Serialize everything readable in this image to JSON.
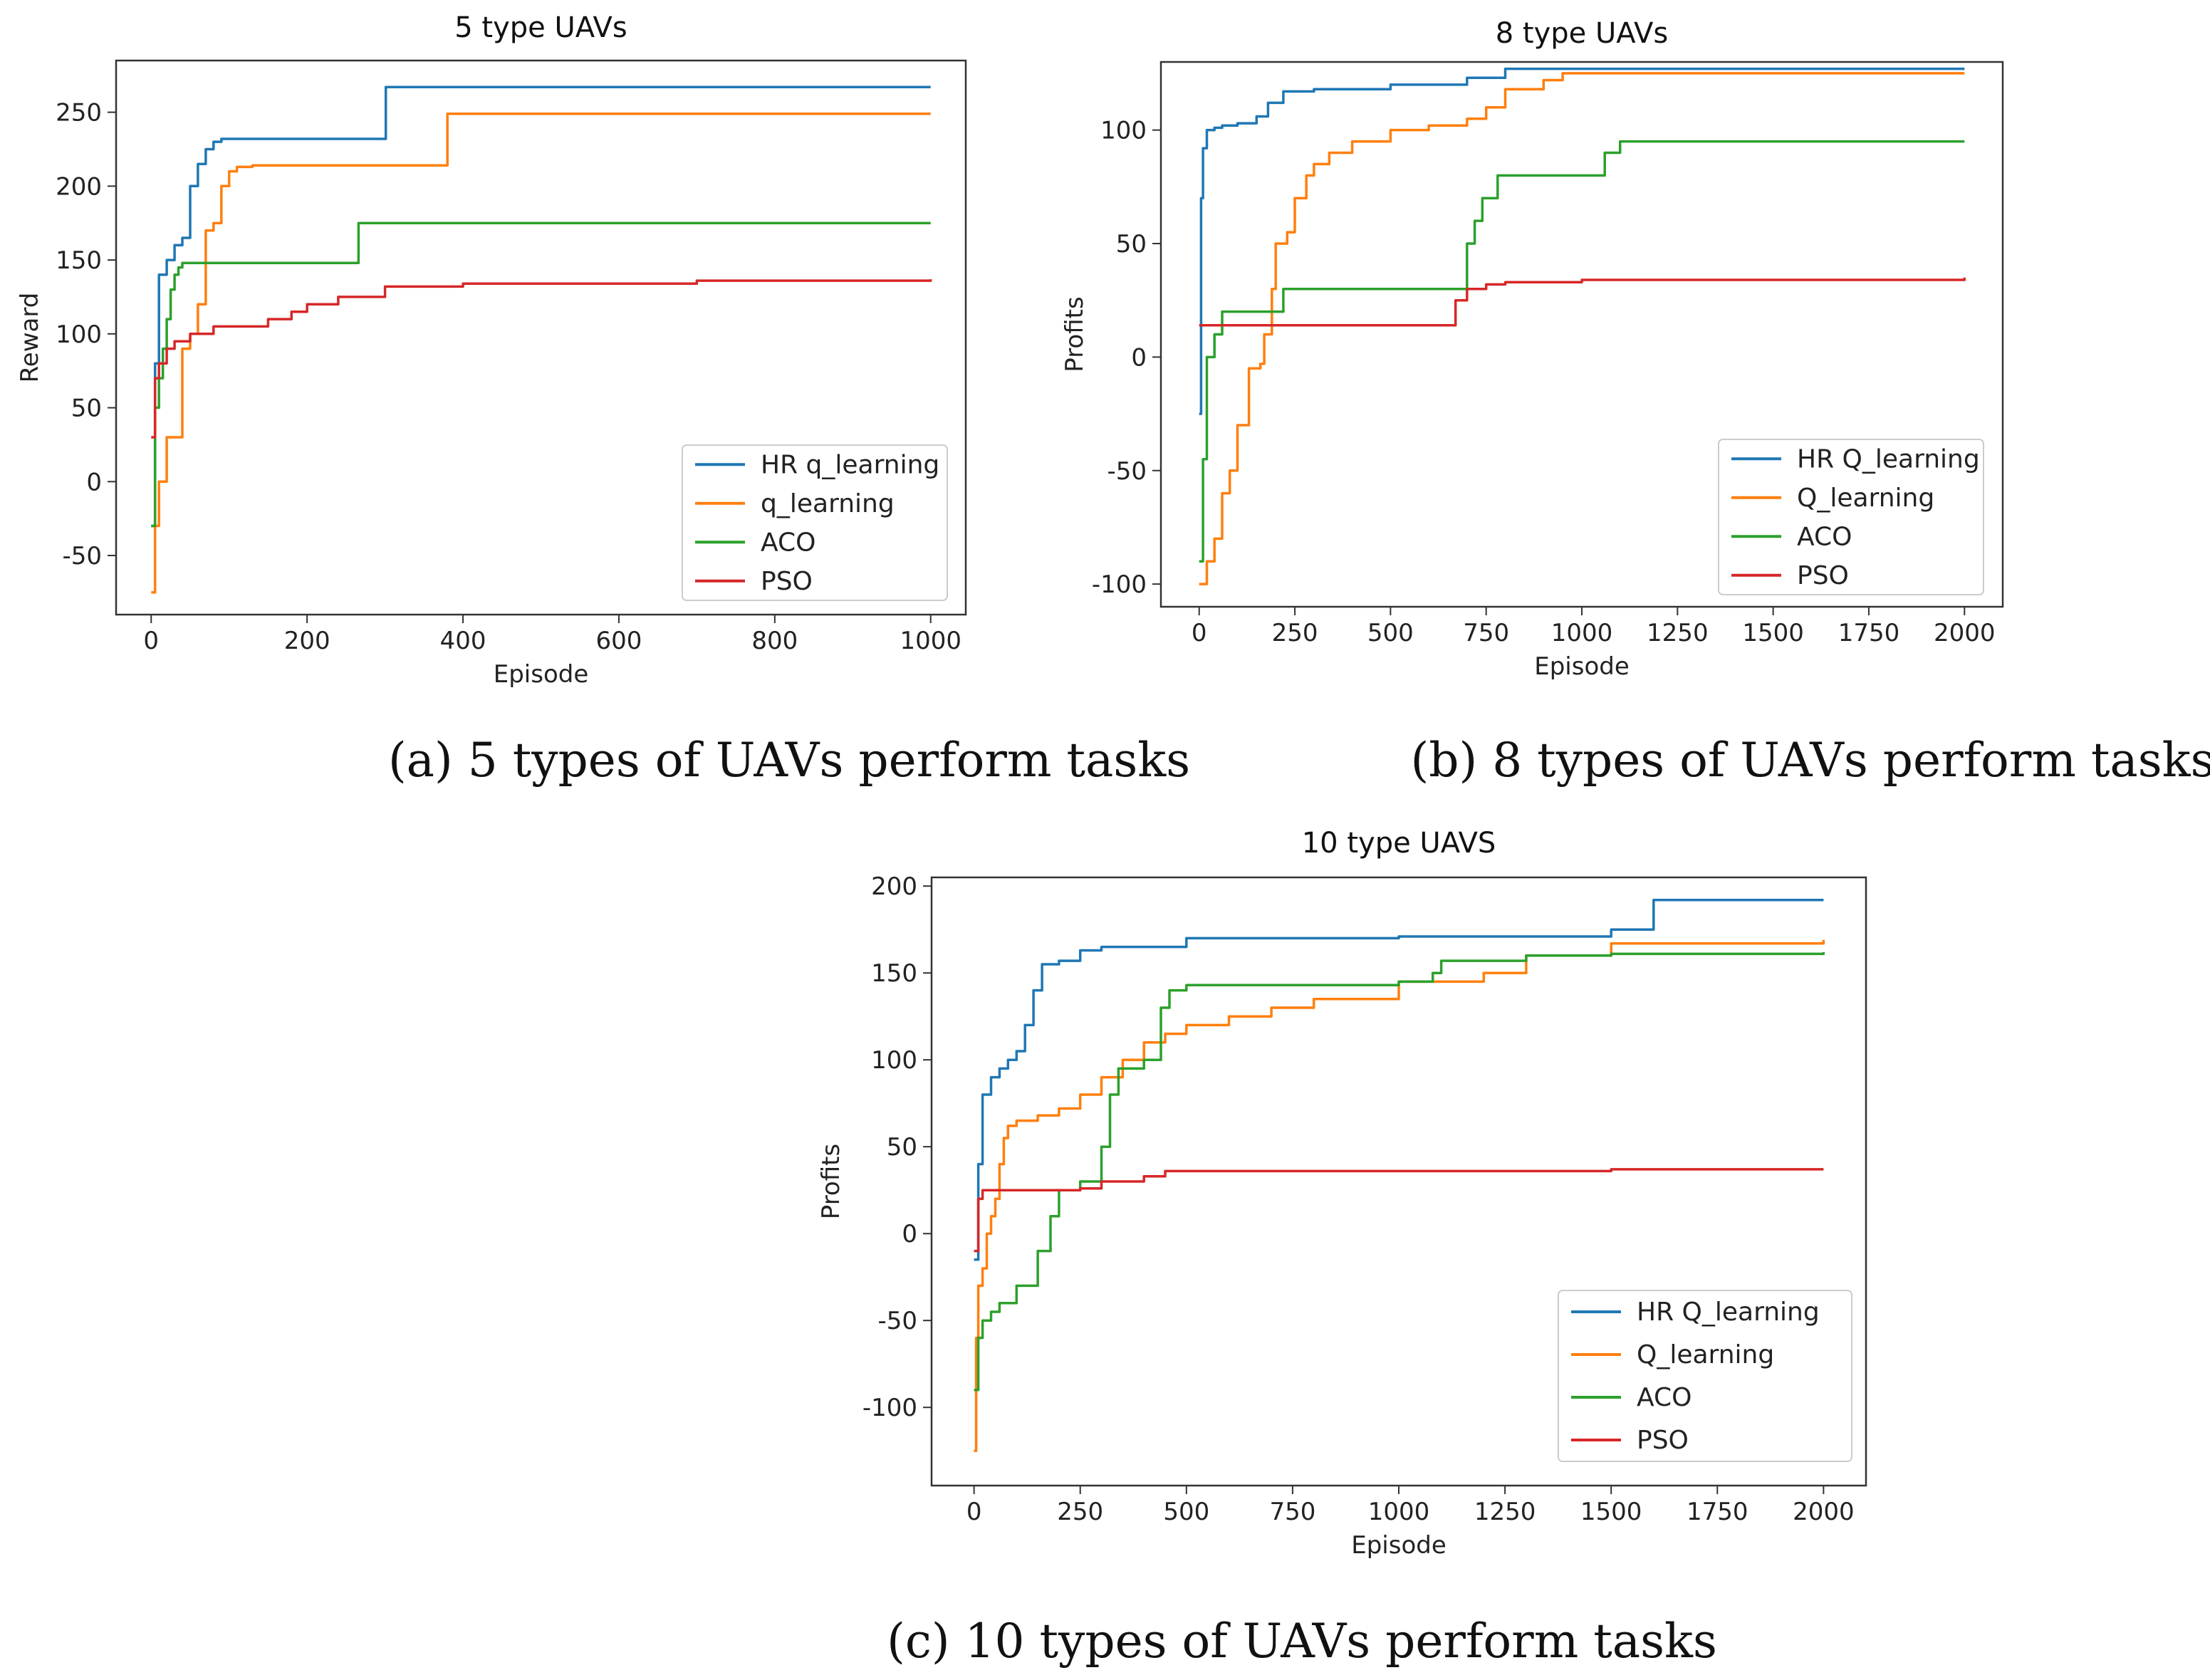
{
  "chart_data": [
    {
      "type": "line",
      "title": "5 type UAVs",
      "xlabel": "Episode",
      "ylabel": "Reward",
      "caption": "(a) 5 types of UAVs perform tasks",
      "xlim": [
        -45,
        1045
      ],
      "ylim": [
        -90,
        285
      ],
      "xticks": [
        0,
        200,
        400,
        600,
        800,
        1000
      ],
      "yticks": [
        -50,
        0,
        50,
        100,
        150,
        200,
        250
      ],
      "legend_position": "lower-right",
      "series": [
        {
          "name": "HR q_learning",
          "color": "#1f77b4",
          "x": [
            0,
            5,
            10,
            20,
            30,
            40,
            50,
            60,
            70,
            80,
            90,
            300,
            301,
            1000
          ],
          "y": [
            -30,
            80,
            140,
            150,
            160,
            165,
            200,
            215,
            225,
            230,
            232,
            232,
            267,
            267
          ]
        },
        {
          "name": "q_learning",
          "color": "#ff7f0e",
          "x": [
            0,
            5,
            10,
            20,
            40,
            50,
            60,
            70,
            80,
            90,
            100,
            110,
            130,
            200,
            378,
            380,
            1000
          ],
          "y": [
            -75,
            -30,
            0,
            30,
            90,
            100,
            120,
            170,
            175,
            200,
            210,
            213,
            214,
            214,
            214,
            249,
            249
          ]
        },
        {
          "name": "ACO",
          "color": "#2ca02c",
          "x": [
            0,
            5,
            10,
            15,
            20,
            25,
            30,
            35,
            40,
            265,
            266,
            1000
          ],
          "y": [
            -30,
            50,
            70,
            90,
            110,
            130,
            140,
            145,
            148,
            148,
            175,
            175
          ]
        },
        {
          "name": "PSO",
          "color": "#d62728",
          "x": [
            0,
            5,
            10,
            20,
            30,
            50,
            80,
            140,
            150,
            180,
            200,
            240,
            300,
            400,
            700,
            1000
          ],
          "y": [
            30,
            70,
            80,
            90,
            95,
            100,
            105,
            105,
            110,
            115,
            120,
            125,
            132,
            134,
            136,
            137
          ]
        }
      ]
    },
    {
      "type": "line",
      "title": "8 type UAVs",
      "xlabel": "Episode",
      "ylabel": "Profits",
      "caption": "(b) 8 types of UAVs perform tasks",
      "xlim": [
        -100,
        2100
      ],
      "ylim": [
        -110,
        130
      ],
      "xticks": [
        0,
        250,
        500,
        750,
        1000,
        1250,
        1500,
        1750,
        2000
      ],
      "yticks": [
        -100,
        -50,
        0,
        50,
        100
      ],
      "legend_position": "lower-right",
      "series": [
        {
          "name": "HR Q_learning",
          "color": "#1f77b4",
          "x": [
            0,
            5,
            10,
            20,
            40,
            60,
            100,
            150,
            180,
            220,
            300,
            500,
            700,
            800,
            2000
          ],
          "y": [
            -25,
            70,
            92,
            100,
            101,
            102,
            103,
            106,
            112,
            117,
            118,
            120,
            123,
            127,
            127
          ]
        },
        {
          "name": "Q_learning",
          "color": "#ff7f0e",
          "x": [
            0,
            20,
            40,
            60,
            80,
            100,
            130,
            160,
            170,
            190,
            200,
            230,
            250,
            280,
            300,
            340,
            400,
            500,
            600,
            700,
            750,
            800,
            900,
            950,
            2000
          ],
          "y": [
            -100,
            -90,
            -80,
            -60,
            -50,
            -30,
            -5,
            -3,
            10,
            30,
            50,
            55,
            70,
            80,
            85,
            90,
            95,
            100,
            102,
            105,
            110,
            118,
            122,
            125,
            125
          ]
        },
        {
          "name": "ACO",
          "color": "#2ca02c",
          "x": [
            0,
            10,
            20,
            40,
            60,
            200,
            220,
            690,
            700,
            720,
            740,
            780,
            1050,
            1060,
            1100,
            2000
          ],
          "y": [
            -90,
            -45,
            0,
            10,
            20,
            20,
            30,
            30,
            50,
            60,
            70,
            80,
            80,
            90,
            95,
            95
          ]
        },
        {
          "name": "PSO",
          "color": "#d62728",
          "x": [
            0,
            10,
            660,
            670,
            700,
            750,
            800,
            1000,
            2000
          ],
          "y": [
            14,
            14,
            14,
            25,
            30,
            32,
            33,
            34,
            35
          ]
        }
      ]
    },
    {
      "type": "line",
      "title": "10 type UAVS",
      "xlabel": "Episode",
      "ylabel": "Profits",
      "caption": "(c) 10 types of UAVs perform tasks",
      "xlim": [
        -100,
        2100
      ],
      "ylim": [
        -145,
        205
      ],
      "xticks": [
        0,
        250,
        500,
        750,
        1000,
        1250,
        1500,
        1750,
        2000
      ],
      "yticks": [
        -100,
        -50,
        0,
        50,
        100,
        150,
        200
      ],
      "legend_position": "lower-right",
      "series": [
        {
          "name": "HR Q_learning",
          "color": "#1f77b4",
          "x": [
            0,
            10,
            20,
            40,
            60,
            80,
            100,
            120,
            140,
            160,
            200,
            250,
            300,
            500,
            1000,
            1500,
            1590,
            1600,
            2000
          ],
          "y": [
            -15,
            40,
            80,
            90,
            95,
            100,
            105,
            120,
            140,
            155,
            157,
            163,
            165,
            170,
            171,
            175,
            175,
            192,
            192
          ]
        },
        {
          "name": "Q_learning",
          "color": "#ff7f0e",
          "x": [
            0,
            5,
            10,
            20,
            30,
            40,
            50,
            60,
            70,
            80,
            100,
            150,
            200,
            250,
            300,
            350,
            400,
            450,
            500,
            600,
            700,
            800,
            1000,
            1200,
            1300,
            1500,
            2000
          ],
          "y": [
            -125,
            -60,
            -30,
            -20,
            0,
            10,
            20,
            40,
            55,
            62,
            65,
            68,
            72,
            80,
            90,
            100,
            110,
            115,
            120,
            125,
            130,
            135,
            145,
            150,
            160,
            167,
            169
          ]
        },
        {
          "name": "ACO",
          "color": "#2ca02c",
          "x": [
            0,
            10,
            20,
            40,
            60,
            100,
            150,
            180,
            200,
            250,
            300,
            320,
            340,
            400,
            440,
            460,
            500,
            1000,
            1080,
            1100,
            1300,
            1500,
            2000
          ],
          "y": [
            -90,
            -60,
            -50,
            -45,
            -40,
            -30,
            -10,
            10,
            25,
            30,
            50,
            80,
            95,
            100,
            130,
            140,
            143,
            145,
            150,
            157,
            160,
            161,
            162
          ]
        },
        {
          "name": "PSO",
          "color": "#d62728",
          "x": [
            0,
            10,
            20,
            100,
            250,
            300,
            400,
            450,
            500,
            1000,
            1500,
            2000
          ],
          "y": [
            -10,
            20,
            25,
            25,
            26,
            30,
            33,
            36,
            36,
            36,
            37,
            37
          ]
        }
      ]
    }
  ]
}
